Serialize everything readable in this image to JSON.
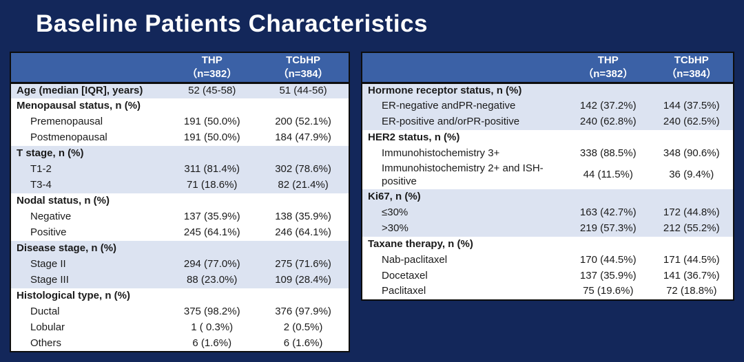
{
  "page": {
    "title": "Baseline Patients Characteristics"
  },
  "colors": {
    "slide_bg": "#13275A",
    "header_bg": "#3B61A6",
    "band_blue": "#DCE3F1",
    "band_white": "#FFFFFF",
    "border_black": "#0D0D0D",
    "title_text": "#FFFFFF",
    "header_text": "#FFFFFF",
    "body_text": "#1A1A1A"
  },
  "tables": [
    {
      "name": "left-baseline-table",
      "header": {
        "thp": [
          "THP",
          "（n=382）"
        ],
        "tcbhp": [
          "TCbHP",
          "（n=384）"
        ]
      },
      "rows": [
        {
          "label": "Age (median [IQR], years)",
          "thp": "52 (45-58)",
          "tcbhp": "51 (44-56)"
        },
        {
          "label": "Menopausal status, n (%)",
          "thp": "",
          "tcbhp": ""
        },
        {
          "label": "Premenopausal",
          "thp": "191 (50.0%)",
          "tcbhp": "200 (52.1%)"
        },
        {
          "label": "Postmenopausal",
          "thp": "191 (50.0%)",
          "tcbhp": "184 (47.9%)"
        },
        {
          "label": "T stage, n (%)",
          "thp": "",
          "tcbhp": ""
        },
        {
          "label": "T1-2",
          "thp": "311 (81.4%)",
          "tcbhp": "302 (78.6%)"
        },
        {
          "label": "T3-4",
          "thp": "71 (18.6%)",
          "tcbhp": "82 (21.4%)"
        },
        {
          "label": "Nodal status, n (%)",
          "thp": "",
          "tcbhp": ""
        },
        {
          "label": "Negative",
          "thp": "137 (35.9%)",
          "tcbhp": "138 (35.9%)"
        },
        {
          "label": "Positive",
          "thp": "245 (64.1%)",
          "tcbhp": "246 (64.1%)"
        },
        {
          "label": "Disease stage, n (%)",
          "thp": "",
          "tcbhp": ""
        },
        {
          "label": "Stage II",
          "thp": "294 (77.0%)",
          "tcbhp": "275 (71.6%)"
        },
        {
          "label": "Stage III",
          "thp": "88 (23.0%)",
          "tcbhp": "109 (28.4%)"
        },
        {
          "label": "Histological type, n (%)",
          "thp": "",
          "tcbhp": ""
        },
        {
          "label": "Ductal",
          "thp": "375 (98.2%)",
          "tcbhp": "376 (97.9%)"
        },
        {
          "label": "Lobular",
          "thp": "1 ( 0.3%)",
          "tcbhp": "2 (0.5%)"
        },
        {
          "label": "Others",
          "thp": "6 (1.6%)",
          "tcbhp": "6 (1.6%)"
        }
      ]
    },
    {
      "name": "right-baseline-table",
      "header": {
        "thp": [
          "THP",
          "（n=382）"
        ],
        "tcbhp": [
          "TCbHP",
          "（n=384）"
        ]
      },
      "rows": [
        {
          "label": "Hormone receptor status, n (%)",
          "thp": "",
          "tcbhp": ""
        },
        {
          "label": "ER-negative andPR-negative",
          "thp": "142 (37.2%)",
          "tcbhp": "144 (37.5%)"
        },
        {
          "label": "ER-positive and/orPR-positive",
          "thp": "240 (62.8%)",
          "tcbhp": "240 (62.5%)"
        },
        {
          "label": "HER2 status, n (%)",
          "thp": "",
          "tcbhp": ""
        },
        {
          "label": "Immunohistochemistry 3+",
          "thp": "338 (88.5%)",
          "tcbhp": "348 (90.6%)"
        },
        {
          "label": "Immunohistochemistry 2+ and ISH-positive",
          "thp": "44 (11.5%)",
          "tcbhp": "36 (9.4%)"
        },
        {
          "label": "Ki67, n (%)",
          "thp": "",
          "tcbhp": ""
        },
        {
          "label": "≤30%",
          "thp": "163 (42.7%)",
          "tcbhp": "172 (44.8%)"
        },
        {
          "label": ">30%",
          "thp": "219 (57.3%)",
          "tcbhp": "212 (55.2%)"
        },
        {
          "label": "Taxane therapy, n (%)",
          "thp": "",
          "tcbhp": ""
        },
        {
          "label": "Nab-paclitaxel",
          "thp": "170 (44.5%)",
          "tcbhp": "171 (44.5%)"
        },
        {
          "label": "Docetaxel",
          "thp": "137 (35.9%)",
          "tcbhp": "141 (36.7%)"
        },
        {
          "label": "Paclitaxel",
          "thp": "75 (19.6%)",
          "tcbhp": "72 (18.8%)"
        }
      ]
    }
  ]
}
